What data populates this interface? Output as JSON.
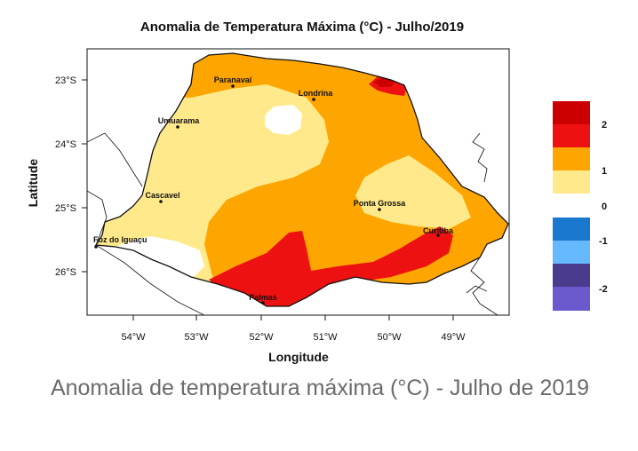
{
  "map": {
    "title": "Anomalia de Temperatura Máxima (°C) - Julho/2019",
    "xlabel": "Longitude",
    "ylabel": "Latitude",
    "lon_ticks": [
      "54°W",
      "53°W",
      "52°W",
      "51°W",
      "50°W",
      "49°W"
    ],
    "lat_ticks": [
      "23°S",
      "24°S",
      "25°S",
      "26°S"
    ],
    "cities": [
      {
        "name": "Paranavaí"
      },
      {
        "name": "Londrina"
      },
      {
        "name": "Umuarama"
      },
      {
        "name": "Cascavel"
      },
      {
        "name": "Ponta Grossa"
      },
      {
        "name": "Curitiba"
      },
      {
        "name": "Foz do Iguaçu"
      },
      {
        "name": "Palmas"
      }
    ]
  },
  "legend": {
    "labels": [
      "2",
      "1",
      "0",
      "-1",
      "-2"
    ],
    "colors": [
      "#cc0000",
      "#ee1111",
      "#ffa500",
      "#ffe98a",
      "#ffffff",
      "#1a78cf",
      "#66b8ff",
      "#4b3b8c",
      "#6b5acd"
    ]
  },
  "caption": "Anomalia de temperatura máxima (°C) - Julho de 2019"
}
